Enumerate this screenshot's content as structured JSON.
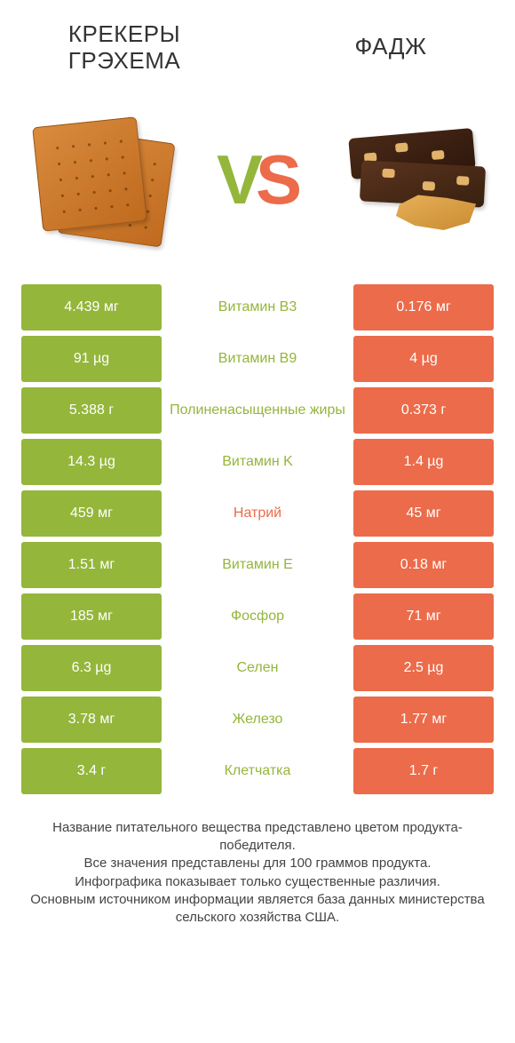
{
  "colors": {
    "green": "#94b63b",
    "orange": "#eb6b4a",
    "vs_v": "#94b63b",
    "vs_s": "#eb6b4a",
    "text": "#333333",
    "footnote": "#444444",
    "background": "#ffffff",
    "row_gap": 6
  },
  "typography": {
    "title_fontsize": 26,
    "vs_fontsize": 78,
    "cell_fontsize": 16,
    "footnote_fontsize": 15
  },
  "products": {
    "left": {
      "title": "КРЕКЕРЫ ГРЭХЕМА",
      "color_key": "green"
    },
    "right": {
      "title": "ФАДЖ",
      "color_key": "orange"
    }
  },
  "vs_label": {
    "v": "V",
    "s": "S"
  },
  "rows": [
    {
      "left": "4.439 мг",
      "label": "Витамин B3",
      "right": "0.176 мг",
      "winner": "left"
    },
    {
      "left": "91 µg",
      "label": "Витамин B9",
      "right": "4 µg",
      "winner": "left"
    },
    {
      "left": "5.388 г",
      "label": "Полиненасыщенные жиры",
      "right": "0.373 г",
      "winner": "left"
    },
    {
      "left": "14.3 µg",
      "label": "Витамин K",
      "right": "1.4 µg",
      "winner": "left"
    },
    {
      "left": "459 мг",
      "label": "Натрий",
      "right": "45 мг",
      "winner": "right"
    },
    {
      "left": "1.51 мг",
      "label": "Витамин E",
      "right": "0.18 мг",
      "winner": "left"
    },
    {
      "left": "185 мг",
      "label": "Фосфор",
      "right": "71 мг",
      "winner": "left"
    },
    {
      "left": "6.3 µg",
      "label": "Селен",
      "right": "2.5 µg",
      "winner": "left"
    },
    {
      "left": "3.78 мг",
      "label": "Железо",
      "right": "1.77 мг",
      "winner": "left"
    },
    {
      "left": "3.4 г",
      "label": "Клетчатка",
      "right": "1.7 г",
      "winner": "left"
    }
  ],
  "footnote": "Название питательного вещества представлено цветом продукта-победителя.\nВсе значения представлены для 100 граммов продукта.\nИнфографика показывает только существенные различия.\nОсновным источником информации является база данных министерства сельского хозяйства США."
}
